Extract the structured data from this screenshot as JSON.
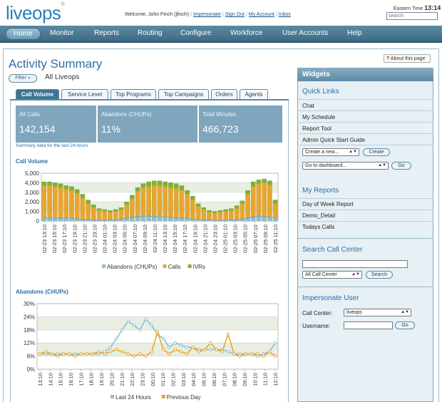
{
  "header": {
    "logo": "liveops",
    "welcome_text": "Welcome, John Finch (jfinch)",
    "links": [
      "Impersonate",
      "Sign Out",
      "My Account",
      "Inbox"
    ],
    "time_label": "Eastern Time",
    "time_value": "13:14",
    "search_placeholder": "search"
  },
  "nav": [
    "Home",
    "Monitor",
    "Reports",
    "Routing",
    "Configure",
    "Workforce",
    "User Accounts",
    "Help"
  ],
  "page": {
    "title": "Activity Summary",
    "about_link": "About this page",
    "filter_button": "Filter »",
    "scope": "All Liveops",
    "tabs": [
      "Call Volume",
      "Service Level",
      "Top Programs",
      "Top Campaigns",
      "Orders",
      "Agents"
    ],
    "stats": [
      {
        "label": "All Calls",
        "value": "142,154"
      },
      {
        "label": "Abandons (CHUPs)",
        "value": "11%"
      },
      {
        "label": "Total Minutes",
        "value": "466,723"
      }
    ],
    "summary_note": "Summary data for the last 24 hours"
  },
  "chart_data": [
    {
      "type": "bar",
      "title": "Call Volume",
      "ylim": [
        0,
        5000
      ],
      "y_ticks": [
        "5,000",
        "4,000",
        "3,000",
        "2,000",
        "1,000",
        "0"
      ],
      "x_ticks": [
        "02-23 13:10",
        "02-23 15:10",
        "02-23 17:10",
        "02-23 19:10",
        "02-23 21:10",
        "02-23 23:10",
        "02-24 01:10",
        "02-24 03:10",
        "02-24 05:10",
        "02-24 07:10",
        "02-24 09:10",
        "02-24 11:10",
        "02-24 13:10",
        "02-24 15:10",
        "02-24 17:10",
        "02-24 19:10",
        "02-24 21:10",
        "02-24 23:10",
        "02-25 01:10",
        "02-25 03:10",
        "02-25 05:10",
        "02-25 07:10",
        "02-25 09:10",
        "02-25 11:10"
      ],
      "series": [
        {
          "name": "Abandons (CHUPs)",
          "color": "#8fbcd4",
          "values": [
            300,
            300,
            300,
            300,
            300,
            300,
            200,
            150,
            100,
            80,
            60,
            60,
            80,
            100,
            200,
            300,
            400,
            450,
            500,
            500,
            450,
            450,
            400,
            350,
            300,
            300,
            250,
            200,
            150,
            100,
            80,
            60,
            60,
            60,
            80,
            120,
            200,
            300,
            400,
            500,
            450,
            400,
            300
          ]
        },
        {
          "name": "Calls",
          "color": "#e8a531",
          "values": [
            3700,
            3700,
            3600,
            3500,
            3300,
            3200,
            2900,
            2400,
            1800,
            1400,
            1100,
            1000,
            900,
            1000,
            1200,
            1700,
            2300,
            3100,
            3500,
            3600,
            3700,
            3700,
            3600,
            3500,
            3400,
            3200,
            2800,
            2200,
            1500,
            1200,
            900,
            800,
            900,
            1000,
            1100,
            1300,
            1800,
            2800,
            3600,
            3900,
            4000,
            3800,
            1800
          ]
        },
        {
          "name": "IVRs",
          "color": "#7fb32f",
          "values": [
            4100,
            4100,
            4000,
            3900,
            3700,
            3600,
            3300,
            2800,
            2200,
            1700,
            1300,
            1200,
            1100,
            1200,
            1400,
            2000,
            2700,
            3500,
            3900,
            4100,
            4200,
            4200,
            4100,
            4000,
            3900,
            3700,
            3200,
            2600,
            1800,
            1400,
            1100,
            1000,
            1100,
            1200,
            1300,
            1600,
            2100,
            3200,
            4100,
            4300,
            4400,
            4200,
            2200
          ]
        }
      ],
      "legend": "bottom"
    },
    {
      "type": "line",
      "title": "Abandons (CHUPs)",
      "ylim": [
        0,
        30
      ],
      "y_ticks": [
        "30%",
        "24%",
        "18%",
        "12%",
        "6%",
        "0%"
      ],
      "x_ticks": [
        "13:10",
        "14:10",
        "15:10",
        "16:10",
        "17:10",
        "18:10",
        "19:10",
        "20:10",
        "21:10",
        "22:10",
        "23:10",
        "00:10",
        "01:10",
        "02:10",
        "03:10",
        "04:10",
        "05:10",
        "06:10",
        "07:10",
        "08:10",
        "09:10",
        "10:10",
        "11:10",
        "12:10"
      ],
      "series": [
        {
          "name": "Last 24 Hours",
          "color": "#8fbcd4",
          "values": [
            7,
            7,
            7,
            7,
            7,
            7,
            7,
            7,
            7,
            7,
            7,
            8,
            10,
            14,
            18,
            22,
            20,
            18,
            23,
            20,
            16,
            14,
            10,
            12,
            11,
            10,
            10,
            9,
            9,
            9,
            9,
            9,
            8,
            7,
            7,
            7,
            7,
            6,
            7,
            8,
            12
          ]
        },
        {
          "name": "Previous Day",
          "color": "#e8a531",
          "values": [
            7,
            8,
            7,
            6,
            7,
            7,
            6,
            7,
            7,
            7,
            8,
            7,
            8,
            9,
            8,
            7,
            6,
            7,
            6,
            8,
            17,
            9,
            7,
            9,
            8,
            7,
            10,
            8,
            9,
            12,
            9,
            8,
            16,
            7,
            6,
            7,
            7,
            7,
            6,
            8,
            6
          ]
        }
      ],
      "legend": "bottom"
    }
  ],
  "widgets": {
    "title": "Widgets",
    "quick_links_title": "Quick Links",
    "quick_links": [
      "Chat",
      "My Schedule",
      "Report Tool",
      "Admin Quick Start Guide"
    ],
    "create_select": "Create a new...",
    "create_button": "Create",
    "dashboard_select": "Go to dashboard...",
    "go_button": "Go",
    "reports_title": "My Reports",
    "reports": [
      "Day of Week Report",
      "Demo_Detail",
      "Todays Calls"
    ],
    "search_title": "Search Call Center",
    "search_select": "All Call Center",
    "search_button": "Search",
    "impersonate_title": "Impersonate User",
    "call_center_label": "Call Center:",
    "call_center_value": "liveops",
    "username_label": "Username:",
    "imp_go_button": "Go"
  }
}
